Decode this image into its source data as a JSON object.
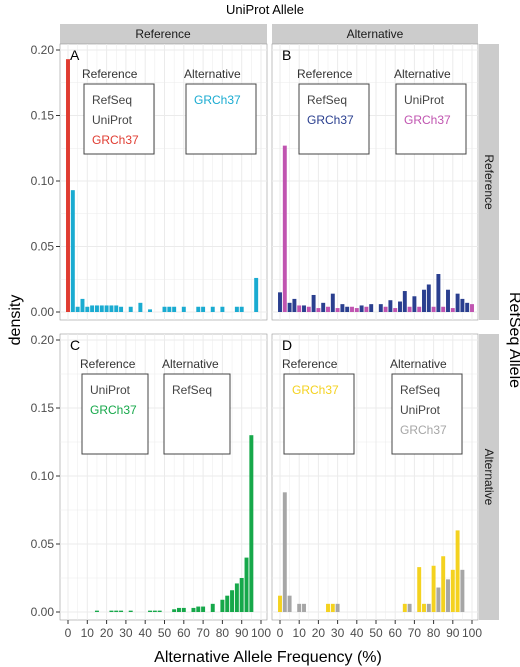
{
  "figure": {
    "top_title": "UniProt Allele",
    "right_title": "RefSeq Allele",
    "ylabel": "density",
    "xlabel": "Alternative Allele Frequency (%)",
    "col_strips": [
      "Reference",
      "Alternative"
    ],
    "row_strips": [
      "Reference",
      "Alternative"
    ]
  },
  "colors": {
    "red": "#e03c31",
    "cyan": "#1aabd1",
    "navy": "#2a3f8f",
    "magenta": "#c054b0",
    "green": "#16a84a",
    "yellow": "#f4d21f",
    "gray": "#a6a6a6",
    "panel_bg": "#ffffff",
    "grid": "#ebebeb",
    "strip_bg": "#cccccc"
  },
  "chart_data": {
    "type": "bar",
    "xlim": [
      0,
      100
    ],
    "ylim": [
      0,
      0.2
    ],
    "x_ticks": [
      "0",
      "10",
      "20",
      "30",
      "40",
      "50",
      "60",
      "70",
      "80",
      "90",
      "100"
    ],
    "y_ticks": [
      "0.00",
      "0.05",
      "0.10",
      "0.15",
      "0.20"
    ],
    "panels": [
      {
        "letter": "A",
        "legend": {
          "groups": [
            {
              "heading": "Reference",
              "items": [
                {
                  "text": "RefSeq",
                  "color": "#444444"
                },
                {
                  "text": "UniProt",
                  "color": "#444444"
                },
                {
                  "text": "GRCh37",
                  "color": "#e03c31"
                }
              ]
            },
            {
              "heading": "Alternative",
              "items": [
                {
                  "text": "GRCh37",
                  "color": "#1aabd1"
                }
              ]
            }
          ]
        },
        "series": [
          {
            "color": "#e03c31",
            "values": [
              [
                0,
                0.193
              ]
            ]
          },
          {
            "color": "#1aabd1",
            "values": [
              [
                2.5,
                0.093
              ],
              [
                5,
                0.004
              ],
              [
                7.5,
                0.01
              ],
              [
                10,
                0.004
              ],
              [
                12.5,
                0.005
              ],
              [
                15,
                0.005
              ],
              [
                17.5,
                0.005
              ],
              [
                20,
                0.005
              ],
              [
                22.5,
                0.005
              ],
              [
                25,
                0.005
              ],
              [
                27.5,
                0.004
              ],
              [
                32.5,
                0.004
              ],
              [
                37.5,
                0.007
              ],
              [
                42.5,
                0.002
              ],
              [
                50,
                0.004
              ],
              [
                52.5,
                0.004
              ],
              [
                55,
                0.004
              ],
              [
                60,
                0.004
              ],
              [
                67.5,
                0.004
              ],
              [
                70,
                0.004
              ],
              [
                75,
                0.004
              ],
              [
                80,
                0.004
              ],
              [
                87.5,
                0.004
              ],
              [
                90,
                0.004
              ],
              [
                97.5,
                0.026
              ]
            ]
          }
        ]
      },
      {
        "letter": "B",
        "legend": {
          "groups": [
            {
              "heading": "Reference",
              "items": [
                {
                  "text": "RefSeq",
                  "color": "#444444"
                },
                {
                  "text": "GRCh37",
                  "color": "#2a3f8f"
                }
              ]
            },
            {
              "heading": "Alternative",
              "items": [
                {
                  "text": "UniProt",
                  "color": "#444444"
                },
                {
                  "text": "GRCh37",
                  "color": "#c054b0"
                }
              ]
            }
          ]
        },
        "series": [
          {
            "color": "#c054b0",
            "values": [
              [
                2.5,
                0.127
              ],
              [
                10,
                0.005
              ],
              [
                15,
                0.004
              ],
              [
                20,
                0.003
              ],
              [
                25,
                0.004
              ],
              [
                30,
                0.003
              ],
              [
                37.5,
                0.004
              ],
              [
                40,
                0.003
              ],
              [
                45,
                0.004
              ],
              [
                55,
                0.004
              ],
              [
                60,
                0.003
              ],
              [
                67.5,
                0.004
              ],
              [
                72.5,
                0.004
              ],
              [
                80,
                0.004
              ],
              [
                85,
                0.004
              ],
              [
                90,
                0.003
              ],
              [
                100,
                0.006
              ]
            ]
          },
          {
            "color": "#2a3f8f",
            "values": [
              [
                0,
                0.015
              ],
              [
                5,
                0.007
              ],
              [
                7.5,
                0.01
              ],
              [
                12.5,
                0.005
              ],
              [
                17.5,
                0.013
              ],
              [
                22.5,
                0.007
              ],
              [
                27.5,
                0.014
              ],
              [
                32.5,
                0.006
              ],
              [
                35,
                0.004
              ],
              [
                42.5,
                0.005
              ],
              [
                47.5,
                0.006
              ],
              [
                52.5,
                0.006
              ],
              [
                57.5,
                0.009
              ],
              [
                62.5,
                0.008
              ],
              [
                65,
                0.016
              ],
              [
                70,
                0.012
              ],
              [
                75,
                0.017
              ],
              [
                77.5,
                0.021
              ],
              [
                82.5,
                0.029
              ],
              [
                87.5,
                0.017
              ],
              [
                92.5,
                0.014
              ],
              [
                95,
                0.01
              ],
              [
                97.5,
                0.007
              ]
            ]
          }
        ]
      },
      {
        "letter": "C",
        "legend": {
          "groups": [
            {
              "heading": "Reference",
              "items": [
                {
                  "text": "UniProt",
                  "color": "#444444"
                },
                {
                  "text": "GRCh37",
                  "color": "#16a84a"
                }
              ]
            },
            {
              "heading": "Alternative",
              "items": [
                {
                  "text": "RefSeq",
                  "color": "#444444"
                }
              ]
            }
          ]
        },
        "series": [
          {
            "color": "#16a84a",
            "values": [
              [
                15,
                0.001
              ],
              [
                22.5,
                0.001
              ],
              [
                25,
                0.001
              ],
              [
                27.5,
                0.001
              ],
              [
                32.5,
                0.001
              ],
              [
                42.5,
                0.001
              ],
              [
                45,
                0.001
              ],
              [
                47.5,
                0.001
              ],
              [
                55,
                0.002
              ],
              [
                57.5,
                0.003
              ],
              [
                60,
                0.003
              ],
              [
                65,
                0.003
              ],
              [
                67.5,
                0.004
              ],
              [
                70,
                0.004
              ],
              [
                75,
                0.006
              ],
              [
                80,
                0.009
              ],
              [
                82.5,
                0.012
              ],
              [
                85,
                0.016
              ],
              [
                87.5,
                0.021
              ],
              [
                90,
                0.025
              ],
              [
                92.5,
                0.04
              ],
              [
                95,
                0.13
              ]
            ]
          }
        ]
      },
      {
        "letter": "D",
        "legend": {
          "groups": [
            {
              "heading": "Reference",
              "items": [
                {
                  "text": "GRCh37",
                  "color": "#f4d21f"
                }
              ]
            },
            {
              "heading": "Alternative",
              "items": [
                {
                  "text": "RefSeq",
                  "color": "#444444"
                },
                {
                  "text": "UniProt",
                  "color": "#444444"
                },
                {
                  "text": "GRCh37",
                  "color": "#a6a6a6"
                }
              ]
            }
          ]
        },
        "series": [
          {
            "color": "#f4d21f",
            "values": [
              [
                0,
                0.012
              ],
              [
                25,
                0.006
              ],
              [
                27.5,
                0.006
              ],
              [
                65,
                0.006
              ],
              [
                72.5,
                0.033
              ],
              [
                75,
                0.006
              ],
              [
                80,
                0.034
              ],
              [
                85,
                0.041
              ],
              [
                90,
                0.031
              ],
              [
                92.5,
                0.06
              ]
            ]
          },
          {
            "color": "#a6a6a6",
            "values": [
              [
                2.5,
                0.088
              ],
              [
                5,
                0.012
              ],
              [
                10,
                0.006
              ],
              [
                12.5,
                0.006
              ],
              [
                30,
                0.006
              ],
              [
                67.5,
                0.006
              ],
              [
                77.5,
                0.006
              ],
              [
                82.5,
                0.018
              ],
              [
                87.5,
                0.024
              ],
              [
                95,
                0.031
              ]
            ]
          }
        ]
      }
    ]
  }
}
